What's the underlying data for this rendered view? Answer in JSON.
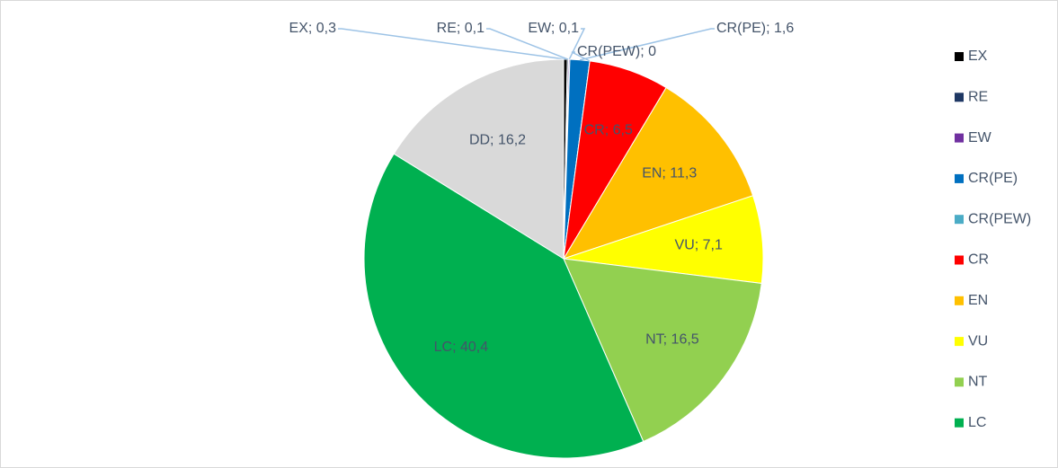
{
  "chart_data": {
    "type": "pie",
    "categories": [
      "EX",
      "RE",
      "EW",
      "CR(PE)",
      "CR(PEW)",
      "CR",
      "EN",
      "VU",
      "NT",
      "LC",
      "DD"
    ],
    "values": [
      0.3,
      0.1,
      0.1,
      1.6,
      0,
      6.5,
      11.3,
      7.1,
      16.5,
      40.4,
      16.2
    ],
    "value_labels": [
      "EX; 0,3",
      "RE; 0,1",
      "EW; 0,1",
      "CR(PE); 1,6",
      "CR(PEW); 0",
      "CR; 6,5",
      "EN; 11,3",
      "VU; 7,1",
      "NT; 16,5",
      "LC; 40,4",
      "DD; 16,2"
    ],
    "colors": [
      "#000000",
      "#1f3864",
      "#7030a0",
      "#0070c0",
      "#4bacc6",
      "#ff0000",
      "#ffc000",
      "#ffff00",
      "#92d050",
      "#00b050",
      "#d9d9d9"
    ],
    "legend": {
      "position": "right",
      "entries": [
        "EX",
        "RE",
        "EW",
        "CR(PE)",
        "CR(PEW)",
        "CR",
        "EN",
        "VU",
        "NT",
        "LC"
      ]
    }
  }
}
